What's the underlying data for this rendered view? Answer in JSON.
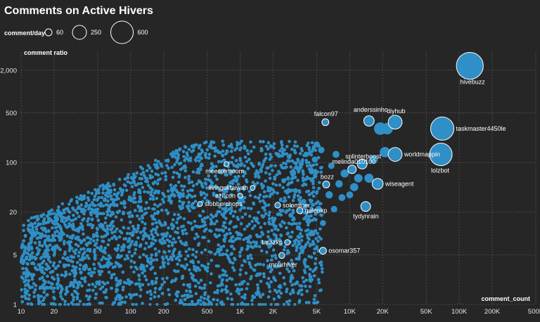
{
  "chart_data": {
    "type": "scatter",
    "title": "Comments on Active Hivers",
    "xlabel": "comment_count",
    "ylabel": "comment ratio",
    "x_scale": "log",
    "y_scale": "log",
    "xlim": [
      10,
      500000
    ],
    "ylim": [
      1,
      3000
    ],
    "x_ticks": [
      {
        "v": 10,
        "label": "10"
      },
      {
        "v": 20,
        "label": "20"
      },
      {
        "v": 50,
        "label": "50"
      },
      {
        "v": 100,
        "label": "100"
      },
      {
        "v": 200,
        "label": "200"
      },
      {
        "v": 500,
        "label": "500"
      },
      {
        "v": 1000,
        "label": "1K"
      },
      {
        "v": 2000,
        "label": "2K"
      },
      {
        "v": 5000,
        "label": "5K"
      },
      {
        "v": 10000,
        "label": "10K"
      },
      {
        "v": 20000,
        "label": "20K"
      },
      {
        "v": 50000,
        "label": "50K"
      },
      {
        "v": 100000,
        "label": "100K"
      },
      {
        "v": 200000,
        "label": "200K"
      },
      {
        "v": 500000,
        "label": "500K"
      }
    ],
    "y_ticks": [
      {
        "v": 1,
        "label": "1"
      },
      {
        "v": 5,
        "label": "5"
      },
      {
        "v": 20,
        "label": "20"
      },
      {
        "v": 100,
        "label": "100"
      },
      {
        "v": 500,
        "label": "500"
      },
      {
        "v": 2000,
        "label": "2,000"
      }
    ],
    "grid": true,
    "point_color": "#2f8fc6",
    "highlight_stroke": "#ffffff",
    "background": "#262626",
    "size_legend": {
      "title": "comment/day",
      "items": [
        {
          "value": 60,
          "label": "60"
        },
        {
          "value": 250,
          "label": "250"
        },
        {
          "value": 600,
          "label": "600"
        }
      ]
    },
    "labeled_points": [
      {
        "name": "hivebuzz",
        "x": 125000,
        "y": 2300,
        "size": 600
      },
      {
        "name": "taskmaster4450le",
        "x": 70000,
        "y": 300,
        "size": 450
      },
      {
        "name": "lolzbot",
        "x": 68000,
        "y": 130,
        "size": 420
      },
      {
        "name": "worldmappin",
        "x": 26000,
        "y": 130,
        "size": 160
      },
      {
        "name": "diyhub",
        "x": 26000,
        "y": 370,
        "size": 160
      },
      {
        "name": "anderssinho",
        "x": 15000,
        "y": 385,
        "size": 90
      },
      {
        "name": "falcon97",
        "x": 6000,
        "y": 370,
        "size": 40
      },
      {
        "name": "splinterboost",
        "x": 13000,
        "y": 95,
        "size": 80
      },
      {
        "name": "melinda010100",
        "x": 10500,
        "y": 80,
        "size": 60
      },
      {
        "name": "wiseagent",
        "x": 18000,
        "y": 50,
        "size": 100
      },
      {
        "name": "bozz",
        "x": 6100,
        "y": 49,
        "size": 40
      },
      {
        "name": "tydynrain",
        "x": 14000,
        "y": 24,
        "size": 80
      },
      {
        "name": "meesterboom",
        "x": 750,
        "y": 95,
        "size": 20
      },
      {
        "name": "livinguktaiwan",
        "x": 1300,
        "y": 44,
        "size": 20
      },
      {
        "name": "azircon",
        "x": 1000,
        "y": 34,
        "size": 20
      },
      {
        "name": "slobberchops",
        "x": 430,
        "y": 26,
        "size": 20
      },
      {
        "name": "solominer",
        "x": 2200,
        "y": 25,
        "size": 28
      },
      {
        "name": "galenkp",
        "x": 3500,
        "y": 21,
        "size": 32
      },
      {
        "name": "tarazkp",
        "x": 2700,
        "y": 7.5,
        "size": 25
      },
      {
        "name": "osomar357",
        "x": 5700,
        "y": 5.7,
        "size": 40
      },
      {
        "name": "mnurhiver",
        "x": 2400,
        "y": 4.9,
        "size": 30
      }
    ],
    "unlabeled_large_points": [
      {
        "x": 19000,
        "y": 300,
        "size": 130
      },
      {
        "x": 22000,
        "y": 300,
        "size": 110
      },
      {
        "x": 21000,
        "y": 140,
        "size": 90
      },
      {
        "x": 15000,
        "y": 60,
        "size": 70
      },
      {
        "x": 12000,
        "y": 60,
        "size": 60
      },
      {
        "x": 9000,
        "y": 70,
        "size": 55
      },
      {
        "x": 8000,
        "y": 50,
        "size": 45
      },
      {
        "x": 11000,
        "y": 45,
        "size": 55
      },
      {
        "x": 16500,
        "y": 110,
        "size": 60
      },
      {
        "x": 7500,
        "y": 130,
        "size": 40
      },
      {
        "x": 5500,
        "y": 150,
        "size": 35
      },
      {
        "x": 4800,
        "y": 110,
        "size": 30
      },
      {
        "x": 4500,
        "y": 75,
        "size": 30
      },
      {
        "x": 6500,
        "y": 35,
        "size": 45
      },
      {
        "x": 8500,
        "y": 32,
        "size": 40
      },
      {
        "x": 5200,
        "y": 22,
        "size": 35
      },
      {
        "x": 4200,
        "y": 15,
        "size": 30
      },
      {
        "x": 5700,
        "y": 14,
        "size": 30
      },
      {
        "x": 3800,
        "y": 28,
        "size": 25
      },
      {
        "x": 3200,
        "y": 40,
        "size": 22
      },
      {
        "x": 5000,
        "y": 180,
        "size": 30
      },
      {
        "x": 4000,
        "y": 130,
        "size": 25
      },
      {
        "x": 3600,
        "y": 95,
        "size": 22
      },
      {
        "x": 3000,
        "y": 70,
        "size": 20
      },
      {
        "x": 2800,
        "y": 120,
        "size": 18
      },
      {
        "x": 2200,
        "y": 130,
        "size": 15
      },
      {
        "x": 6800,
        "y": 90,
        "size": 35
      },
      {
        "x": 10000,
        "y": 35,
        "size": 40
      },
      {
        "x": 7200,
        "y": 22,
        "size": 35
      },
      {
        "x": 4600,
        "y": 10,
        "size": 25
      },
      {
        "x": 3400,
        "y": 12,
        "size": 22
      },
      {
        "x": 2900,
        "y": 18,
        "size": 20
      },
      {
        "x": 2500,
        "y": 55,
        "size": 18
      }
    ]
  }
}
